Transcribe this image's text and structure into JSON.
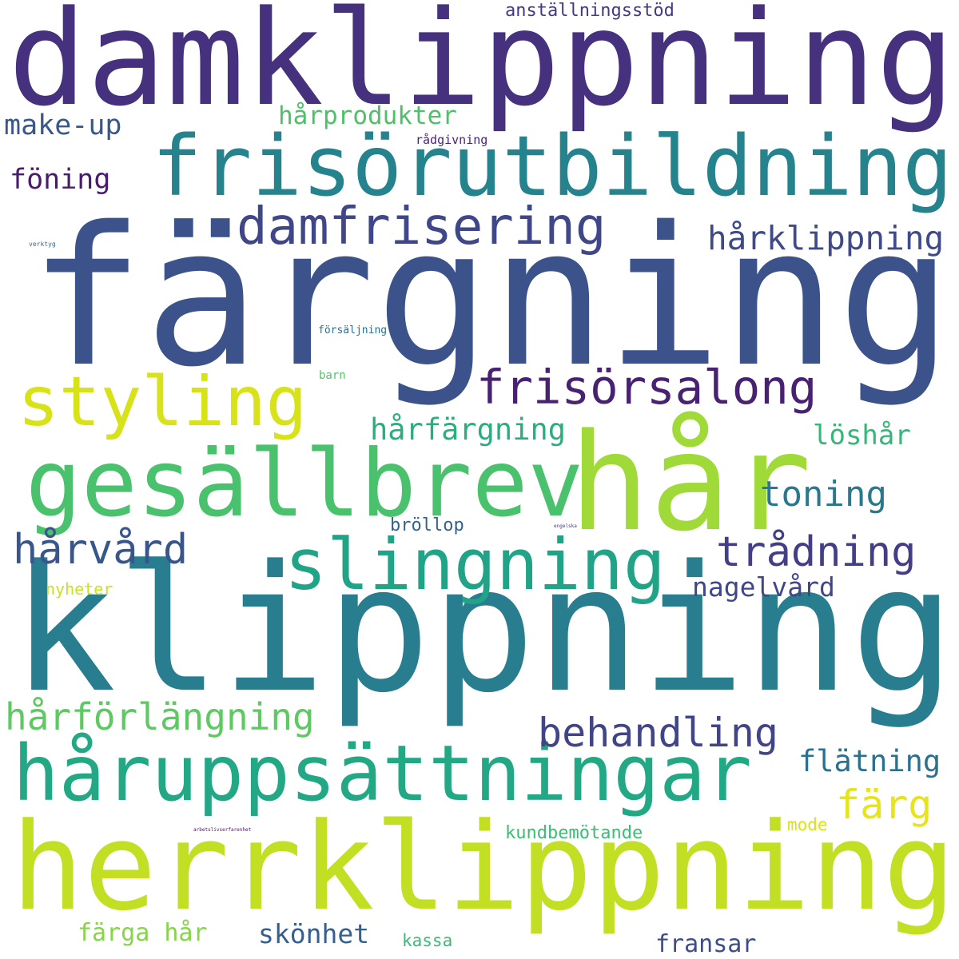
{
  "words": [
    {
      "text": "damklippning",
      "color": "#46317e"
    },
    {
      "text": "färgning",
      "color": "#3b528b"
    },
    {
      "text": "klippning",
      "color": "#287d8e"
    },
    {
      "text": "herrklippning",
      "color": "#c2df23"
    },
    {
      "text": "frisörutbildning",
      "color": "#25838e"
    },
    {
      "text": "hår",
      "color": "#a0da39"
    },
    {
      "text": "gesällbrev",
      "color": "#4ac16d"
    },
    {
      "text": "håruppsättningar",
      "color": "#22a884"
    },
    {
      "text": "slingning",
      "color": "#20a386"
    },
    {
      "text": "damfrisering",
      "color": "#3f4788"
    },
    {
      "text": "styling",
      "color": "#d8e219"
    },
    {
      "text": "frisörsalong",
      "color": "#482173"
    },
    {
      "text": "trådning",
      "color": "#433e85"
    },
    {
      "text": "behandling",
      "color": "#414487"
    },
    {
      "text": "hårvård",
      "color": "#39568c"
    },
    {
      "text": "hårförlängning",
      "color": "#5ec962"
    },
    {
      "text": "färg",
      "color": "#e7e419"
    },
    {
      "text": "hårklippning",
      "color": "#3e4a89"
    },
    {
      "text": "toning",
      "color": "#2a788e"
    },
    {
      "text": "flätning",
      "color": "#2d708e"
    },
    {
      "text": "hårfärgning",
      "color": "#29af7f"
    },
    {
      "text": "löshår",
      "color": "#35b779"
    },
    {
      "text": "nagelvård",
      "color": "#404688"
    },
    {
      "text": "make-up",
      "color": "#38588c"
    },
    {
      "text": "föning",
      "color": "#481b6d"
    },
    {
      "text": "hårprodukter",
      "color": "#4fbf6a"
    },
    {
      "text": "skönhet",
      "color": "#355f8d"
    },
    {
      "text": "färga hår",
      "color": "#86d549"
    },
    {
      "text": "fransar",
      "color": "#3e4c8a"
    },
    {
      "text": "kundbemötande",
      "color": "#3dbc74"
    },
    {
      "text": "anställningsstöd",
      "color": "#443983"
    },
    {
      "text": "bröllop",
      "color": "#33638d"
    },
    {
      "text": "nyheter",
      "color": "#cae11f"
    },
    {
      "text": "mode",
      "color": "#d8e219"
    },
    {
      "text": "kassa",
      "color": "#3bbb75"
    },
    {
      "text": "rådgivning",
      "color": "#482576"
    },
    {
      "text": "försäljning",
      "color": "#2d708e"
    },
    {
      "text": "barn",
      "color": "#52c569"
    },
    {
      "text": "verktyg",
      "color": "#31688e"
    },
    {
      "text": "engelska",
      "color": "#453581"
    },
    {
      "text": "arbetslivserfarenhet",
      "color": "#471164"
    }
  ]
}
